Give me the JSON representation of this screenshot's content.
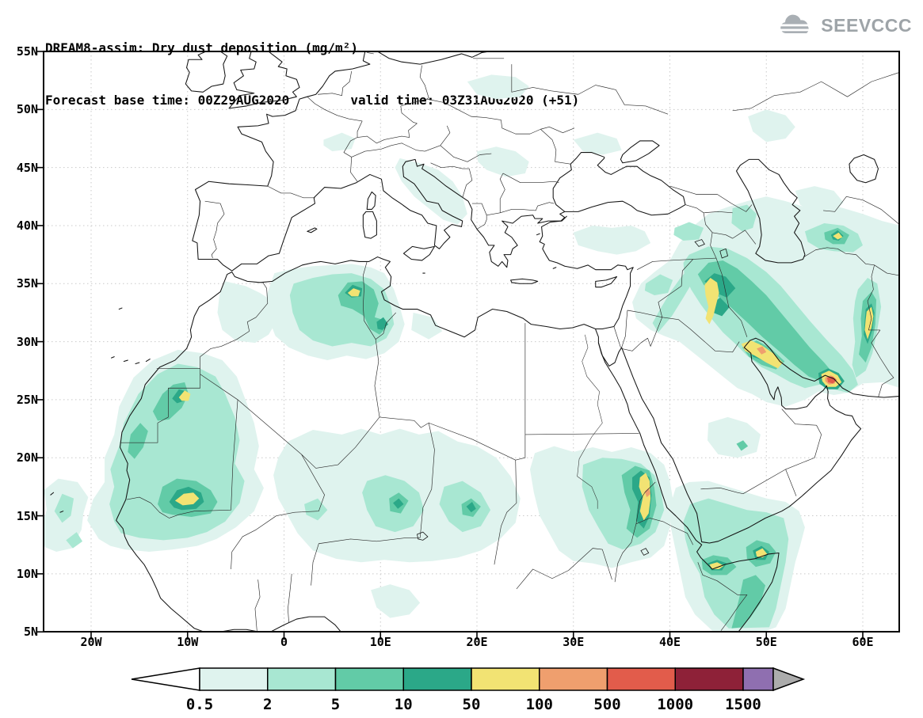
{
  "header": {
    "title": "DREAM8-assim: Dry dust deposition (mg/m²)",
    "subtitle": "Forecast base time: 00Z29AUG2020        valid time: 03Z31AUG2020 (+51)",
    "logo_text": "SEEVCCC",
    "logo_color": "#9ea4a8"
  },
  "axes": {
    "lat_ticks": [
      {
        "label": "55N",
        "deg": 55
      },
      {
        "label": "50N",
        "deg": 50
      },
      {
        "label": "45N",
        "deg": 45
      },
      {
        "label": "40N",
        "deg": 40
      },
      {
        "label": "35N",
        "deg": 35
      },
      {
        "label": "30N",
        "deg": 30
      },
      {
        "label": "25N",
        "deg": 25
      },
      {
        "label": "20N",
        "deg": 20
      },
      {
        "label": "15N",
        "deg": 15
      },
      {
        "label": "10N",
        "deg": 10
      },
      {
        "label": "5N",
        "deg": 5
      }
    ],
    "lon_ticks": [
      {
        "label": "20W",
        "deg": -20
      },
      {
        "label": "10W",
        "deg": -10
      },
      {
        "label": "0",
        "deg": 0
      },
      {
        "label": "10E",
        "deg": 10
      },
      {
        "label": "20E",
        "deg": 20
      },
      {
        "label": "30E",
        "deg": 30
      },
      {
        "label": "40E",
        "deg": 40
      },
      {
        "label": "50E",
        "deg": 50
      },
      {
        "label": "60E",
        "deg": 60
      }
    ]
  },
  "colorbar": {
    "labels": [
      "0.5",
      "2",
      "5",
      "10",
      "50",
      "100",
      "500",
      "1000",
      "1500"
    ],
    "segment_colors": [
      "#dff3ee",
      "#a8e7d2",
      "#62cba7",
      "#2ba888",
      "#f2e373",
      "#ef9f6e",
      "#e25c4b",
      "#8e2138",
      "#8f6fb0"
    ],
    "under_color": "#ffffff",
    "over_color": "#acacac"
  },
  "chart_data": {
    "type": "heatmap",
    "subtype": "filled-contour geographic map (lat/lon)",
    "title": "DREAM8-assim: Dry dust deposition (mg/m²)",
    "forecast_base_time": "00Z29AUG2020",
    "valid_time": "03Z31AUG2020",
    "forecast_hour": 51,
    "units": "mg/m²",
    "lon_range": [
      -25,
      64
    ],
    "lat_range": [
      5,
      55
    ],
    "graticule": "dotted grid, 5 deg latitude x 10 deg longitude",
    "contour_levels": [
      0.5,
      2,
      5,
      10,
      50,
      100,
      500,
      1000,
      1500
    ],
    "palette": [
      "#dff3ee",
      "#a8e7d2",
      "#62cba7",
      "#2ba888",
      "#f2e373",
      "#ef9f6e",
      "#e25c4b",
      "#8e2138",
      "#8f6fb0"
    ],
    "legend_position": "bottom horizontal bar with under/over arrows",
    "features": [
      {
        "region": "Western Sahara / N Mauritania",
        "lon": -10.3,
        "lat": 25.4,
        "peak_mg_m2": "50-100"
      },
      {
        "region": "Mali-Mauritania border (Sahel)",
        "lon": -10,
        "lat": 16.6,
        "peak_mg_m2": "50-100"
      },
      {
        "region": "NE Algeria / Tunisia chotts",
        "lon": 7.2,
        "lat": 34.3,
        "peak_mg_m2": "50-100"
      },
      {
        "region": "NW Libya / Tunisia border",
        "lon": 10.2,
        "lat": 31.5,
        "peak_mg_m2": "10-50"
      },
      {
        "region": "Niger / Chad Sahel patches",
        "lon": 12,
        "lat": 16,
        "peak_mg_m2": "10-50"
      },
      {
        "region": "Sudan Red Sea hills",
        "lon": 37.4,
        "lat": 17,
        "peak_mg_m2": "50-100"
      },
      {
        "region": "Djibouti / Gulf of Aden coast",
        "lon": 44.7,
        "lat": 10.7,
        "peak_mg_m2": "50-100"
      },
      {
        "region": "NE Somalia (Horn)",
        "lon": 49.4,
        "lat": 11.8,
        "peak_mg_m2": "50-100"
      },
      {
        "region": "Iraq-Iran border, Zagros foothills",
        "lon": 44.2,
        "lat": 33.5,
        "peak_mg_m2": "50-100"
      },
      {
        "region": "N Persian Gulf coast",
        "lon": 49.5,
        "lat": 29,
        "peak_mg_m2": "100-500"
      },
      {
        "region": "Strait of Hormuz / SE Iran coast",
        "lon": 56.8,
        "lat": 26.7,
        "peak_mg_m2": "500-1000"
      },
      {
        "region": "E Iran (Sistan)",
        "lon": 60.6,
        "lat": 31.5,
        "peak_mg_m2": "50-100"
      },
      {
        "region": "S Turkmenistan (Karakum)",
        "lon": 57.4,
        "lat": 39,
        "peak_mg_m2": "50-100"
      },
      {
        "region": "background coverage 0.5-10",
        "description": "pale shading over W Africa, Sahel band, Sudan, Horn of Africa, Arabian margins, Zagros-Caspian belt, scattered S/E Europe"
      }
    ]
  }
}
